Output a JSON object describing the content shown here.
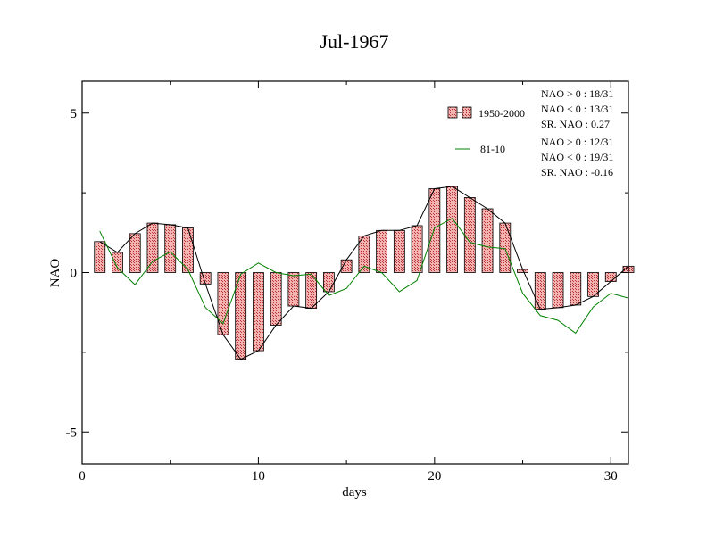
{
  "chart_data": {
    "type": "bar",
    "title": "Jul-1967",
    "xlabel": "days",
    "ylabel": "NAO",
    "xlim": [
      0,
      31
    ],
    "ylim": [
      -6,
      6
    ],
    "x_ticks": [
      0,
      10,
      20,
      30
    ],
    "y_ticks": [
      5,
      0,
      -5
    ],
    "x_tick_labels": [
      "0",
      "10",
      "20",
      "30"
    ],
    "y_tick_labels": [
      "5",
      "0",
      "-5"
    ],
    "legend_position": "top-right",
    "days": [
      1,
      2,
      3,
      4,
      5,
      6,
      7,
      8,
      9,
      10,
      11,
      12,
      13,
      14,
      15,
      16,
      17,
      18,
      19,
      20,
      21,
      22,
      23,
      24,
      25,
      26,
      27,
      28,
      29,
      30,
      31
    ],
    "series": [
      {
        "name": "1950-2000",
        "style": "bar+line",
        "bar_fill": "#e06666",
        "line_color": "#000000",
        "values": [
          0.97,
          0.63,
          1.22,
          1.55,
          1.5,
          1.4,
          -0.36,
          -1.95,
          -2.72,
          -2.45,
          -1.65,
          -1.05,
          -1.12,
          -0.6,
          0.4,
          1.15,
          1.32,
          1.32,
          1.47,
          2.63,
          2.7,
          2.35,
          2.0,
          1.55,
          0.1,
          -1.15,
          -1.1,
          -1.02,
          -0.75,
          -0.28,
          0.2
        ]
      },
      {
        "name": "81-10",
        "style": "line",
        "line_color": "#008000",
        "values": [
          1.3,
          0.15,
          -0.38,
          0.35,
          0.65,
          0.1,
          -1.1,
          -1.6,
          -0.05,
          0.3,
          0.0,
          -0.1,
          -0.05,
          -0.72,
          -0.5,
          0.2,
          0.0,
          -0.6,
          -0.25,
          1.4,
          1.7,
          0.95,
          0.8,
          0.75,
          -0.65,
          -1.35,
          -1.5,
          -1.9,
          -1.08,
          -0.65,
          -0.8
        ]
      }
    ],
    "annotations": {
      "group1": [
        "NAO > 0 :  18/31",
        "NAO < 0 :  13/31",
        "SR. NAO :  0.27"
      ],
      "group2": [
        "NAO > 0 :  12/31",
        "NAO < 0 :  19/31",
        "SR. NAO : -0.16"
      ]
    }
  }
}
